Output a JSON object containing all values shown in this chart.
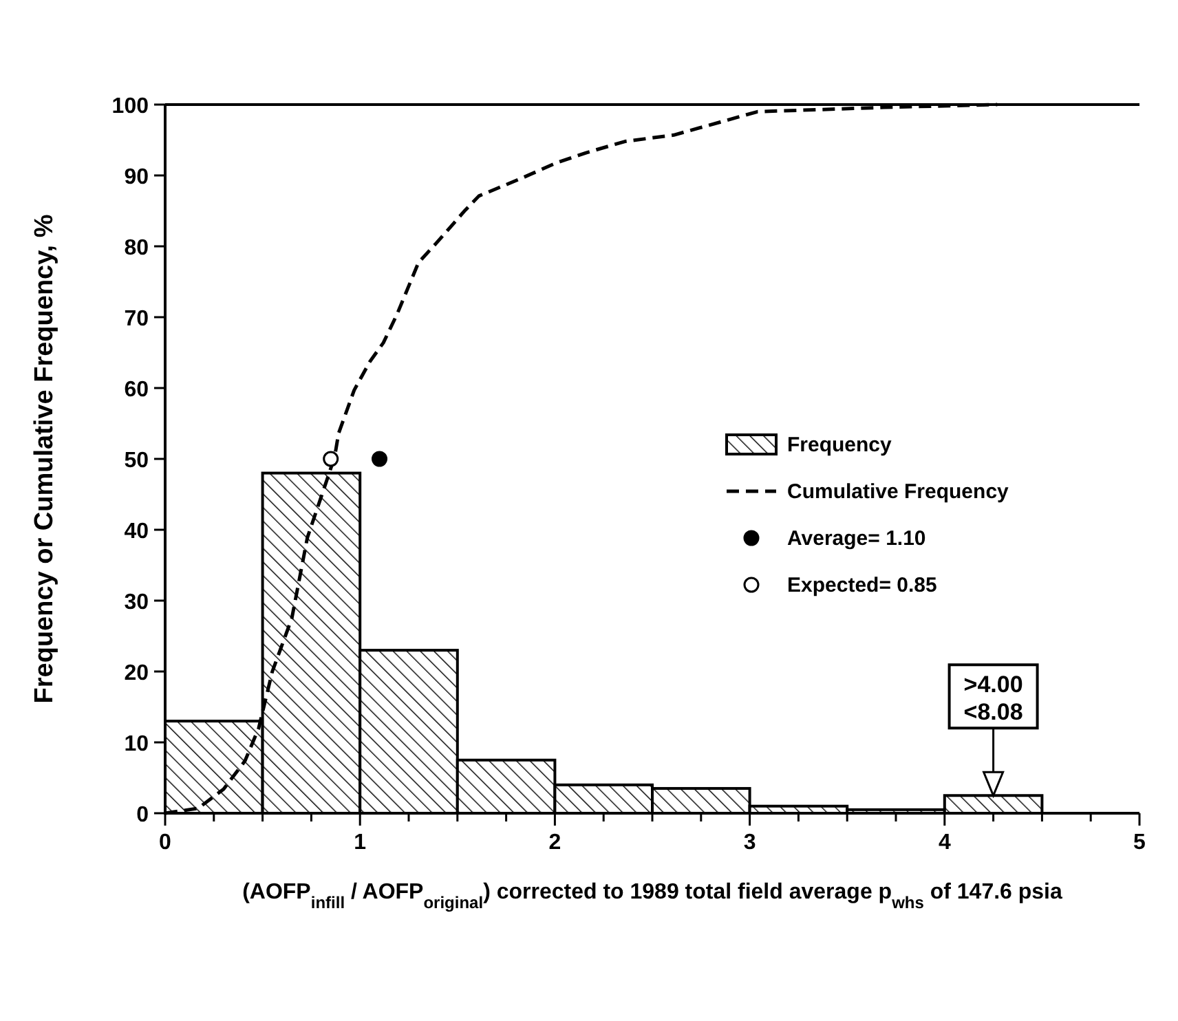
{
  "chart_data": {
    "type": "histogram",
    "ylabel": "Frequency or Cumulative Frequency, %",
    "xlabel": "(AOFP$_{infill}$ / AOFP$_{original}$)  corrected to 1989 total field average p$_{whs}$ of 147.6 psia",
    "bins": [
      0,
      0.5,
      1,
      1.5,
      2,
      2.5,
      3,
      3.5,
      4,
      4.5
    ],
    "xlim": [
      0,
      5
    ],
    "xticks": [
      0,
      {
        "value": 0.25,
        "label": null
      },
      {
        "value": 0.5,
        "label": null
      },
      {
        "value": 0.75,
        "label": null
      },
      1,
      {
        "value": 1.25,
        "label": null
      },
      {
        "value": 1.5,
        "label": null
      },
      {
        "value": 1.75,
        "label": null
      },
      2,
      {
        "value": 2.25,
        "label": null
      },
      {
        "value": 2.5,
        "label": null
      },
      {
        "value": 2.75,
        "label": null
      },
      3,
      {
        "value": 3.25,
        "label": null
      },
      {
        "value": 3.5,
        "label": null
      },
      {
        "value": 3.75,
        "label": null
      },
      4,
      {
        "value": 4.25,
        "label": null
      },
      {
        "value": 4.5,
        "label": null
      },
      {
        "value": 4.75,
        "label": null
      },
      5
    ],
    "ylim": [
      0,
      100
    ],
    "yticks": [
      0,
      10,
      20,
      30,
      40,
      50,
      60,
      70,
      80,
      90,
      100
    ],
    "legend": "right",
    "series": [
      {
        "name": "Frequency",
        "color": "#000000",
        "values": [
          13,
          48,
          23,
          7.5,
          4,
          3.5,
          1,
          0.5,
          2.5
        ]
      },
      {
        "name": "Cumulative Frequency",
        "type": "line",
        "color": "#000000",
        "line_style": "dashed",
        "marker": "none",
        "x": [
          0,
          0.17,
          0.3,
          0.41,
          0.48,
          0.55,
          0.65,
          0.73,
          0.82,
          0.87,
          0.89,
          0.97,
          1.05,
          1.12,
          1.19,
          1.3,
          1.39,
          1.54,
          1.61,
          1.82,
          2.01,
          2.16,
          2.36,
          2.61,
          3.04,
          3.69,
          4.27
        ],
        "values": [
          0,
          0.7,
          3.4,
          7.4,
          12,
          20,
          27.5,
          38.9,
          46.2,
          50.3,
          53.6,
          59.7,
          63.7,
          66.4,
          70.4,
          77.7,
          80.4,
          85.1,
          87.1,
          89.5,
          91.8,
          93.2,
          94.8,
          95.7,
          99,
          99.6,
          100
        ]
      },
      {
        "name": "Average= 1.10",
        "type": "scatter",
        "color": "#000000",
        "marker": "circle",
        "x": [
          1.1
        ],
        "values": [
          50
        ]
      },
      {
        "name": "Expected= 0.85",
        "type": "scatter",
        "color": "#ffffff",
        "marker": "circle",
        "x": [
          0.85
        ],
        "values": [
          50
        ]
      }
    ],
    "annotations": [
      {
        "text": ">4.00\n<8.08",
        "x": 4.25,
        "y": 2.5
      }
    ]
  }
}
